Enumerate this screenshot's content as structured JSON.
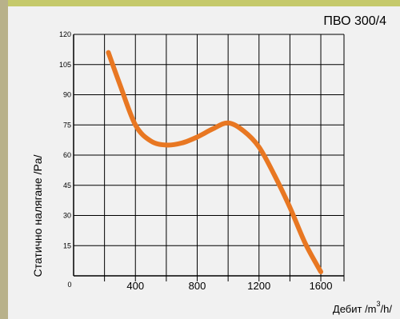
{
  "colors": {
    "curve": "#e87722",
    "grid": "#000000",
    "panel": "#f1f1f1",
    "frame": "#b2a780"
  },
  "chart_data": {
    "type": "line",
    "title": "ПВО 300/4",
    "xlabel_prefix": "Дебит /m",
    "xlabel_sup": "3",
    "xlabel_suffix": "/h/",
    "ylabel": "Статично налягане /Pa/",
    "xlim": [
      0,
      1750
    ],
    "ylim": [
      0,
      120
    ],
    "origin_label": "0",
    "x_tick_labels": [
      "400",
      "800",
      "1200",
      "1600"
    ],
    "x_tick_values": [
      400,
      800,
      1200,
      1600
    ],
    "x_grid": [
      200,
      400,
      600,
      800,
      1000,
      1200,
      1400,
      1600,
      1750
    ],
    "y_ticks": [
      15,
      30,
      45,
      60,
      75,
      90,
      105,
      120
    ],
    "grid": true,
    "series": [
      {
        "x": [
          225,
          300,
          400,
          500,
          600,
          700,
          800,
          900,
          1000,
          1100,
          1200,
          1300,
          1400,
          1500,
          1600
        ],
        "y": [
          111,
          95,
          75,
          67,
          65,
          66,
          69,
          73,
          76,
          72,
          64,
          50,
          34,
          16,
          2
        ]
      }
    ]
  }
}
